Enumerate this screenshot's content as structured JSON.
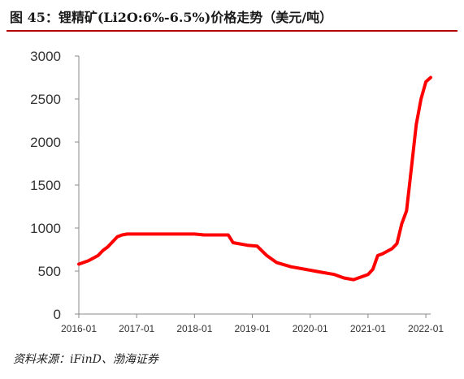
{
  "figure": {
    "title": "图 45：锂精矿(Li2O:6%-6.5%)价格走势（美元/吨）",
    "source": "资料来源：iFinD、渤海证券",
    "accent_color": "#b00000",
    "line_color": "#ff0000"
  },
  "chart_data": {
    "type": "line",
    "title": "",
    "xlabel": "",
    "ylabel": "",
    "ylim": [
      0,
      3000
    ],
    "yticks": [
      0,
      500,
      1000,
      1500,
      2000,
      2500,
      3000
    ],
    "xlim": [
      "2016-01",
      "2022-02"
    ],
    "xticks": [
      "2016-01",
      "2017-01",
      "2018-01",
      "2019-01",
      "2020-01",
      "2021-01",
      "2022-01"
    ],
    "grid": false,
    "legend": "none",
    "series": [
      {
        "x": [
          "2016-01",
          "2016-03",
          "2016-05",
          "2016-06",
          "2016-07",
          "2016-08",
          "2016-09",
          "2016-10",
          "2016-11",
          "2017-01",
          "2017-06",
          "2018-01",
          "2018-03",
          "2018-06",
          "2018-08",
          "2018-09",
          "2018-12",
          "2019-02",
          "2019-04",
          "2019-06",
          "2019-09",
          "2019-12",
          "2020-03",
          "2020-06",
          "2020-08",
          "2020-10",
          "2020-11",
          "2021-01",
          "2021-02",
          "2021-03",
          "2021-04",
          "2021-06",
          "2021-07",
          "2021-08",
          "2021-09",
          "2021-10",
          "2021-11",
          "2021-12",
          "2022-01",
          "2022-02"
        ],
        "values": [
          580,
          620,
          680,
          740,
          780,
          840,
          900,
          920,
          930,
          930,
          930,
          930,
          920,
          920,
          920,
          830,
          800,
          790,
          680,
          600,
          550,
          520,
          490,
          460,
          420,
          400,
          420,
          460,
          520,
          680,
          700,
          760,
          820,
          1050,
          1200,
          1700,
          2200,
          2500,
          2700,
          2750
        ]
      }
    ]
  }
}
